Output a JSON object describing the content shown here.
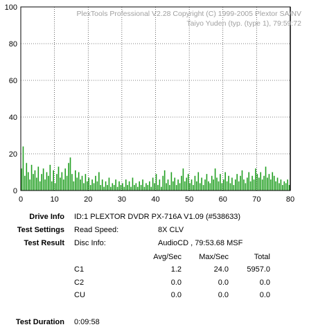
{
  "chart_data": {
    "type": "bar",
    "title": "PlexTools Professional V2.28 Copyright (C) 1999-2005 Plextor SA/NV",
    "subtitle": "Taiyo Yuden (typ. (type 1), 79:59:72",
    "xlim": [
      0,
      80
    ],
    "ylim": [
      0,
      100
    ],
    "x_ticks": [
      "0",
      "10",
      "20",
      "30",
      "40",
      "50",
      "60",
      "70",
      "80"
    ],
    "y_ticks": [
      "0",
      "20",
      "40",
      "60",
      "80",
      "100"
    ],
    "grid": true,
    "series": [
      {
        "color": "#1f9e1f",
        "x": [
          0.0,
          0.5,
          1.0,
          1.5,
          2.0,
          2.5,
          3.0,
          3.5,
          4.0,
          4.5,
          5.0,
          5.5,
          6.0,
          6.5,
          7.0,
          7.5,
          8.0,
          8.5,
          9.0,
          9.5,
          10.0,
          10.5,
          11.0,
          11.5,
          12.0,
          12.5,
          13.0,
          13.5,
          14.0,
          14.5,
          15.0,
          15.5,
          16.0,
          16.5,
          17.0,
          17.5,
          18.0,
          18.5,
          19.0,
          19.5,
          20.0,
          20.5,
          21.0,
          21.5,
          22.0,
          22.5,
          23.0,
          23.5,
          24.0,
          24.5,
          25.0,
          25.5,
          26.0,
          26.5,
          27.0,
          27.5,
          28.0,
          28.5,
          29.0,
          29.5,
          30.0,
          30.5,
          31.0,
          31.5,
          32.0,
          32.5,
          33.0,
          33.5,
          34.0,
          34.5,
          35.0,
          35.5,
          36.0,
          36.5,
          37.0,
          37.5,
          38.0,
          38.5,
          39.0,
          39.5,
          40.0,
          40.5,
          41.0,
          41.5,
          42.0,
          42.5,
          43.0,
          43.5,
          44.0,
          44.5,
          45.0,
          45.5,
          46.0,
          46.5,
          47.0,
          47.5,
          48.0,
          48.5,
          49.0,
          49.5,
          50.0,
          50.5,
          51.0,
          51.5,
          52.0,
          52.5,
          53.0,
          53.5,
          54.0,
          54.5,
          55.0,
          55.5,
          56.0,
          56.5,
          57.0,
          57.5,
          58.0,
          58.5,
          59.0,
          59.5,
          60.0,
          60.5,
          61.0,
          61.5,
          62.0,
          62.5,
          63.0,
          63.5,
          64.0,
          64.5,
          65.0,
          65.5,
          66.0,
          66.5,
          67.0,
          67.5,
          68.0,
          68.5,
          69.0,
          69.5,
          70.0,
          70.5,
          71.0,
          71.5,
          72.0,
          72.5,
          73.0,
          73.5,
          74.0,
          74.5,
          75.0,
          75.5,
          76.0,
          76.5,
          77.0,
          77.5,
          78.0,
          78.5,
          79.0,
          79.5
        ],
        "values": [
          12,
          24,
          8,
          15,
          10,
          6,
          14,
          9,
          11,
          7,
          13,
          5,
          9,
          12,
          6,
          10,
          8,
          14,
          5,
          11,
          4,
          9,
          13,
          7,
          10,
          6,
          12,
          8,
          15,
          18,
          9,
          5,
          11,
          7,
          10,
          6,
          8,
          4,
          9,
          5,
          7,
          3,
          6,
          4,
          8,
          5,
          10,
          3,
          6,
          2,
          5,
          3,
          7,
          2,
          4,
          3,
          6,
          2,
          5,
          3,
          4,
          2,
          6,
          3,
          5,
          2,
          7,
          3,
          4,
          2,
          5,
          3,
          6,
          2,
          4,
          3,
          5,
          2,
          7,
          4,
          9,
          3,
          6,
          2,
          8,
          11,
          4,
          6,
          3,
          10,
          5,
          7,
          3,
          6,
          4,
          8,
          12,
          5,
          7,
          9,
          4,
          6,
          3,
          8,
          5,
          10,
          4,
          7,
          3,
          6,
          9,
          5,
          4,
          8,
          6,
          12,
          7,
          5,
          9,
          4,
          6,
          10,
          5,
          8,
          4,
          7,
          3,
          6,
          9,
          5,
          8,
          11,
          6,
          4,
          7,
          10,
          5,
          8,
          6,
          12,
          9,
          7,
          10,
          6,
          8,
          13,
          7,
          9,
          6,
          10,
          8,
          5,
          7,
          4,
          6,
          3,
          5,
          4,
          6,
          3
        ]
      }
    ]
  },
  "info": {
    "drive_info_label": "Drive Info",
    "drive_info_value": "ID:1 PLEXTOR DVDR PX-716A V1.09 (#538633)",
    "test_settings_label": "Test Settings",
    "read_speed_label": "Read Speed:",
    "read_speed_value": "8X CLV",
    "test_result_label": "Test Result",
    "disc_info_label": "Disc Info:",
    "disc_info_value": "AudioCD , 79:53.68 MSF",
    "test_duration_label": "Test Duration",
    "test_duration_value": "0:09:58"
  },
  "results": {
    "headers": [
      "Avg/Sec",
      "Max/Sec",
      "Total"
    ],
    "rows": [
      {
        "name": "C1",
        "avg": "1.2",
        "max": "24.0",
        "total": "5957.0"
      },
      {
        "name": "C2",
        "avg": "0.0",
        "max": "0.0",
        "total": "0.0"
      },
      {
        "name": "CU",
        "avg": "0.0",
        "max": "0.0",
        "total": "0.0"
      }
    ]
  }
}
